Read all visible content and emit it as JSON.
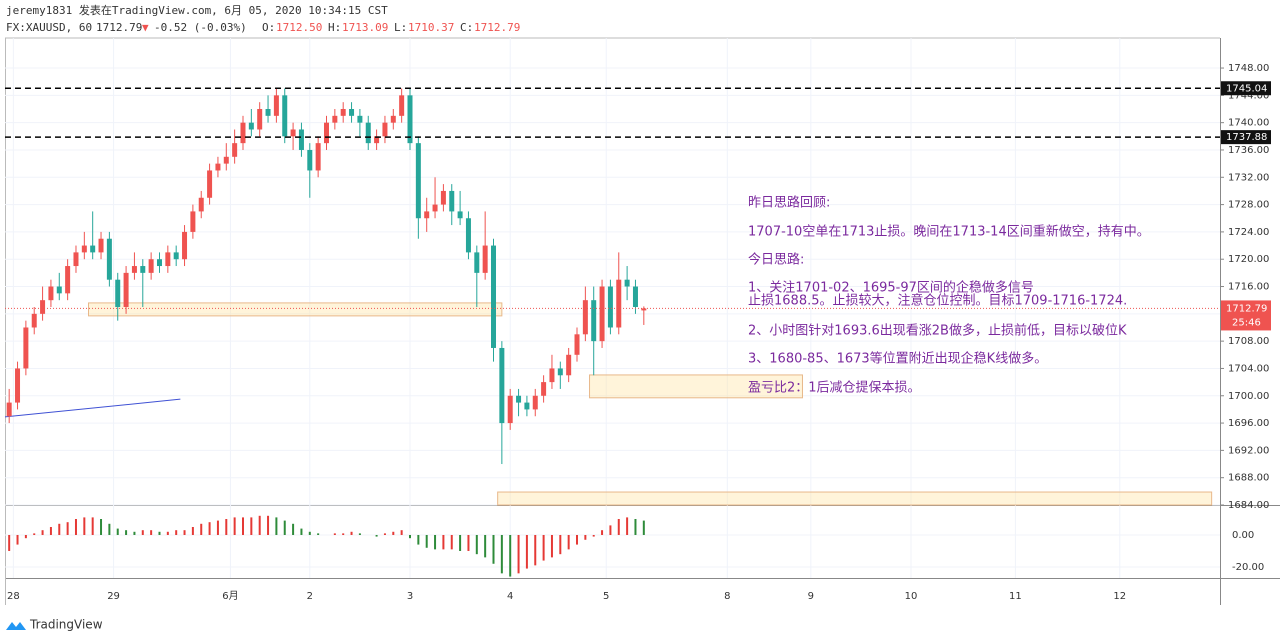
{
  "header": {
    "author_line": "jeremy1831 发表在TradingView.com, 6月 05, 2020 10:34:15 CST",
    "symbol": "FX:XAUUSD, 60",
    "last": "1712.79",
    "arrow": "▼",
    "change": "-0.52 (-0.03%)",
    "ohlc": [
      {
        "label": "O:",
        "value": "1712.50"
      },
      {
        "label": "H:",
        "value": "1713.09"
      },
      {
        "label": "L:",
        "value": "1710.37"
      },
      {
        "label": "C:",
        "value": "1712.79"
      }
    ]
  },
  "chart_data": {
    "type": "candlestick",
    "x": [
      0,
      2,
      4,
      6,
      8,
      10,
      12,
      14,
      16,
      18,
      20,
      22,
      24,
      26,
      28,
      30,
      32,
      34,
      36,
      38,
      40,
      42,
      44,
      46,
      48,
      50,
      52,
      54,
      56,
      58,
      60,
      62,
      64,
      66,
      68,
      70,
      72,
      74,
      76,
      78,
      80,
      82,
      84,
      86,
      88,
      90,
      92,
      94,
      96,
      98,
      100,
      102,
      104,
      106,
      108,
      110,
      112,
      114,
      116,
      118,
      120,
      122,
      124,
      126,
      128,
      130,
      132,
      134,
      136,
      138,
      140,
      142,
      144,
      146,
      148,
      150,
      152
    ],
    "open": [
      1697,
      1699,
      1704,
      1710,
      1712,
      1714,
      1716,
      1715,
      1719,
      1721,
      1722,
      1721,
      1723,
      1717,
      1713,
      1718,
      1719,
      1718,
      1720,
      1719,
      1721,
      1720,
      1724,
      1727,
      1729,
      1733,
      1734,
      1735,
      1737,
      1740,
      1739,
      1742,
      1741,
      1744,
      1738,
      1739,
      1736,
      1733,
      1737,
      1740,
      1741,
      1742,
      1741,
      1740,
      1737,
      1738,
      1740,
      1741,
      1744,
      1737,
      1726,
      1727,
      1728,
      1730,
      1727,
      1726,
      1721,
      1718,
      1722,
      1707,
      1696,
      1700,
      1699,
      1698,
      1700,
      1702,
      1704,
      1703,
      1706,
      1709,
      1714,
      1708,
      1716,
      1710,
      1717,
      1716,
      1712.5
    ],
    "high": [
      1701,
      1705,
      1711,
      1713,
      1716,
      1717,
      1718,
      1720,
      1722,
      1724,
      1727,
      1724,
      1724,
      1718,
      1719,
      1721,
      1720,
      1721,
      1721,
      1722,
      1722,
      1725,
      1728,
      1730,
      1734,
      1735,
      1737,
      1739,
      1741,
      1742,
      1743,
      1744,
      1745,
      1745,
      1740,
      1740,
      1737,
      1738,
      1741,
      1742,
      1743,
      1743,
      1742,
      1741,
      1739,
      1741,
      1742,
      1745,
      1745,
      1738,
      1729,
      1732,
      1731,
      1731,
      1730,
      1727,
      1722,
      1727,
      1723,
      1708,
      1701,
      1701,
      1700,
      1701,
      1703,
      1706,
      1705,
      1707,
      1710,
      1716,
      1716,
      1717,
      1717,
      1721,
      1719,
      1717,
      1713.09
    ],
    "low": [
      1696,
      1698,
      1703,
      1709,
      1711,
      1713,
      1714,
      1714,
      1718,
      1720,
      1720,
      1720,
      1716,
      1711,
      1712,
      1717,
      1713,
      1717,
      1718,
      1718,
      1719,
      1719,
      1723,
      1726,
      1728,
      1732,
      1733,
      1734,
      1736,
      1738,
      1738,
      1740,
      1740,
      1737,
      1736,
      1735,
      1729,
      1732,
      1736,
      1739,
      1740,
      1740,
      1738,
      1736,
      1736,
      1737,
      1739,
      1740,
      1736,
      1723,
      1724,
      1726,
      1727,
      1725,
      1725,
      1720,
      1713,
      1717,
      1705,
      1690,
      1695,
      1697,
      1697,
      1697,
      1699,
      1701,
      1701,
      1702,
      1705,
      1708,
      1703,
      1707,
      1709,
      1709,
      1714,
      1712,
      1710.37
    ],
    "close": [
      1699,
      1704,
      1710,
      1712,
      1714,
      1716,
      1715,
      1719,
      1721,
      1722,
      1721,
      1723,
      1717,
      1713,
      1718,
      1719,
      1718,
      1720,
      1719,
      1721,
      1720,
      1724,
      1727,
      1729,
      1733,
      1734,
      1735,
      1737,
      1740,
      1739,
      1742,
      1741,
      1744,
      1738,
      1739,
      1736,
      1733,
      1737,
      1740,
      1741,
      1742,
      1741,
      1740,
      1737,
      1738,
      1740,
      1741,
      1744,
      1737,
      1726,
      1727,
      1728,
      1730,
      1727,
      1726,
      1721,
      1718,
      1722,
      1707,
      1696,
      1700,
      1699,
      1698,
      1700,
      1702,
      1704,
      1703,
      1706,
      1709,
      1714,
      1708,
      1716,
      1710,
      1717,
      1716,
      1713,
      1712.79
    ],
    "up_color": "#ef5350",
    "down_color": "#26a69a",
    "xlim": [
      -1,
      290
    ],
    "xticks": [
      {
        "value": 1,
        "label": "28"
      },
      {
        "value": 25,
        "label": "29"
      },
      {
        "value": 53,
        "label": "6月"
      },
      {
        "value": 72,
        "label": "2"
      },
      {
        "value": 96,
        "label": "3"
      },
      {
        "value": 120,
        "label": "4"
      },
      {
        "value": 143,
        "label": "5"
      },
      {
        "value": 172,
        "label": "8"
      },
      {
        "value": 192,
        "label": "9"
      },
      {
        "value": 216,
        "label": "10"
      },
      {
        "value": 241,
        "label": "11"
      },
      {
        "value": 266,
        "label": "12"
      }
    ],
    "ylim": [
      1684,
      1752.4
    ],
    "yticks": [
      {
        "value": 1684,
        "label": "1684.00"
      },
      {
        "value": 1688,
        "label": "1688.00"
      },
      {
        "value": 1692,
        "label": "1692.00"
      },
      {
        "value": 1696,
        "label": "1696.00"
      },
      {
        "value": 1700,
        "label": "1700.00"
      },
      {
        "value": 1704,
        "label": "1704.00"
      },
      {
        "value": 1708,
        "label": "1708.00"
      },
      {
        "value": 1712,
        "label": "1712.00"
      },
      {
        "value": 1716,
        "label": "1716.00"
      },
      {
        "value": 1720,
        "label": "1720.00"
      },
      {
        "value": 1724,
        "label": "1724.00"
      },
      {
        "value": 1728,
        "label": "1728.00"
      },
      {
        "value": 1732,
        "label": "1732.00"
      },
      {
        "value": 1736,
        "label": "1736.00"
      },
      {
        "value": 1740,
        "label": "1740.00"
      },
      {
        "value": 1744,
        "label": "1744.00"
      },
      {
        "value": 1748,
        "label": "1748.00"
      }
    ],
    "grid": true,
    "levels": [
      {
        "value": 1745.04,
        "label": "1745.04"
      },
      {
        "value": 1737.88,
        "label": "1737.88"
      }
    ],
    "price_line": {
      "value": 1712.79,
      "label": "1712.79",
      "timer": "25:46",
      "color": "#ef5350"
    },
    "zones": [
      {
        "x": [
          19,
          118
        ],
        "y": [
          1711.7,
          1713.6
        ]
      },
      {
        "x": [
          139,
          190
        ],
        "y": [
          1699.7,
          1703.05
        ]
      },
      {
        "x": [
          117,
          288
        ],
        "y": [
          1684,
          1685.9
        ]
      }
    ],
    "trend_line": {
      "x": [
        -1,
        41
      ],
      "y": [
        1696.9,
        1699.5
      ],
      "color": "#3f51d4"
    },
    "oscillator": {
      "values": [
        -10,
        -6,
        -2,
        1,
        3,
        5,
        7,
        8,
        10,
        11,
        11,
        10,
        7,
        4,
        3,
        2,
        3,
        3,
        2,
        2,
        3,
        3,
        5,
        7,
        8,
        9,
        10,
        11,
        11,
        11,
        12,
        12,
        11,
        9,
        7,
        4,
        2,
        1,
        0,
        1,
        1,
        2,
        1,
        0,
        -1,
        1,
        2,
        3,
        -2,
        -6,
        -8,
        -9,
        -9,
        -9,
        -10,
        -10,
        -12,
        -14,
        -18,
        -24,
        -26,
        -24,
        -21,
        -19,
        -16,
        -14,
        -12,
        -9,
        -6,
        -3,
        -1,
        3,
        6,
        10,
        11,
        10,
        9
      ],
      "ylim": [
        -26.9,
        17.5
      ],
      "yticks": [
        {
          "value": 0,
          "label": "0.00"
        },
        {
          "value": -20,
          "label": "-20.00"
        }
      ],
      "rise_color": "#e53935",
      "fall_color": "#2e8b3a"
    }
  },
  "notes": [
    "昨日思路回顾:",
    "1707-10空单在1713止损。晚间在1713-14区间重新做空，持有中。",
    "今日思路:",
    "1、关注1701-02、1695-97区间的企稳做多信号",
    "止损1688.5。止损较大，注意仓位控制。目标1709-1716-1724.",
    "2、小时图针对1693.6出现看涨2B做多，止损前低，目标以破位K",
    "3、1680-85、1673等位置附近出现企稳K线做多。",
    "盈亏比2：1后减仓提保本损。"
  ],
  "footer": {
    "brand": "TradingView"
  }
}
